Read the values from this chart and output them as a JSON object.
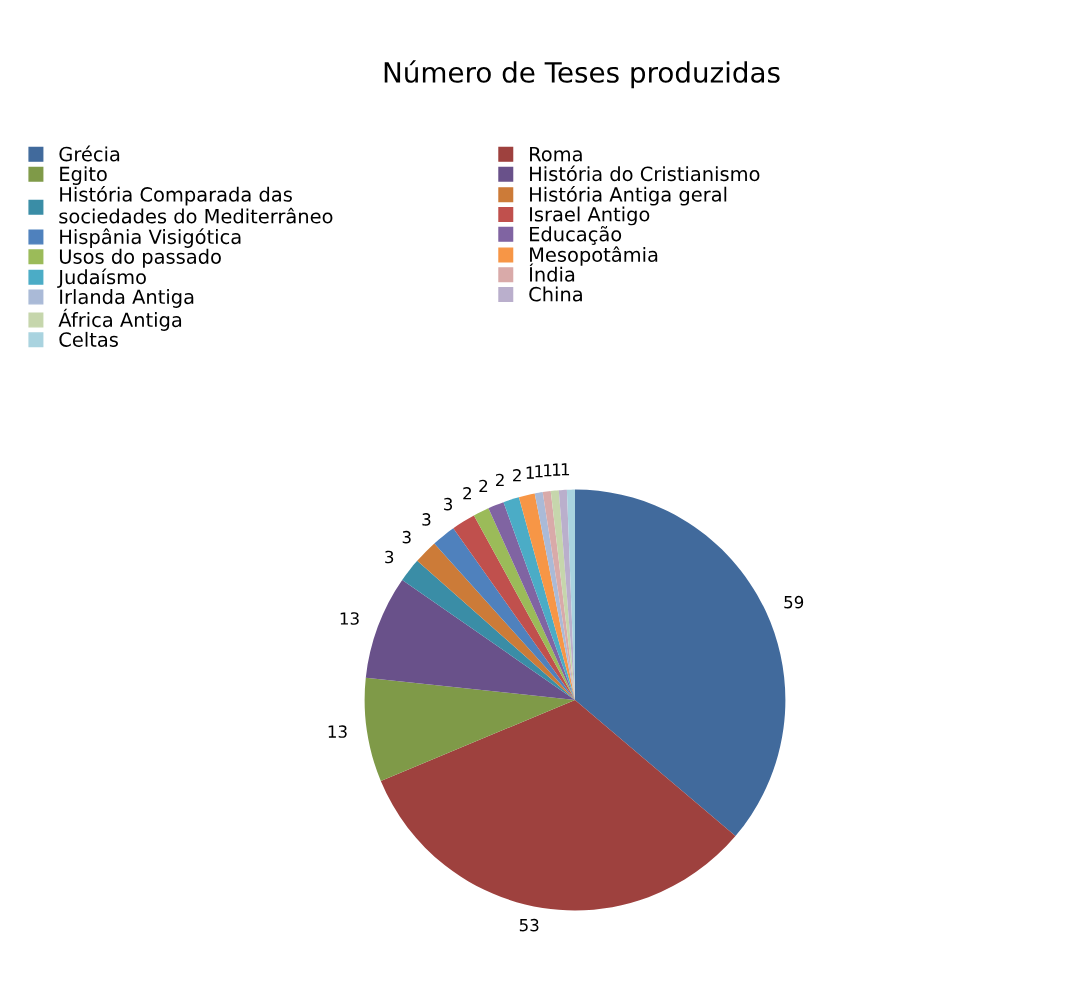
{
  "chart_data": {
    "type": "pie",
    "title": "Número de Teses produzidas",
    "categories": [
      "Grécia",
      "Roma",
      "Egito",
      "História do Cristianismo",
      "História Comparada das\nsociedades do Mediterrâneo",
      "História Antiga geral",
      "Hispânia Visigótica",
      "Israel Antigo",
      "Usos do passado",
      "Educação",
      "Judaísmo",
      "Mesopotâmia",
      "Irlanda Antiga",
      "Índia",
      "África Antiga",
      "China",
      "Celtas"
    ],
    "values": [
      59,
      53,
      13,
      13,
      3,
      3,
      3,
      3,
      2,
      2,
      2,
      2,
      1,
      1,
      1,
      1,
      1
    ],
    "colors": [
      "#416a9c",
      "#9e413e",
      "#7f9a48",
      "#69518a",
      "#3a8da6",
      "#cc7b38",
      "#4f81bd",
      "#c0504d",
      "#9bbb59",
      "#8064a2",
      "#4bacc6",
      "#f79646",
      "#aabad7",
      "#d9aaa9",
      "#c6d6ac",
      "#baafcc",
      "#a9d3df"
    ],
    "data_labels": true,
    "legend": "top left"
  }
}
